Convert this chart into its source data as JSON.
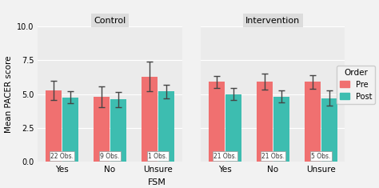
{
  "panels": [
    "Control",
    "Intervention"
  ],
  "fsm_categories": [
    "Yes",
    "No",
    "Unsure"
  ],
  "bar_colors": {
    "Pre": "#F08080",
    "Post": "#40BFB0"
  },
  "bar_color_pre": "#F07070",
  "bar_color_post": "#3DBDB0",
  "ylabel": "Mean PACER score",
  "xlabel": "FSM",
  "ylim": [
    0,
    10
  ],
  "yticks": [
    0.0,
    2.5,
    5.0,
    7.5,
    10.0
  ],
  "legend_title": "Order",
  "legend_labels": [
    "Pre",
    "Post"
  ],
  "panel_bg": "#EBEBEB",
  "fig_bg": "#F2F2F2",
  "data": {
    "Control": {
      "Yes": {
        "Pre": {
          "mean": 5.25,
          "err": 0.7
        },
        "Post": {
          "mean": 4.75,
          "err": 0.45
        }
      },
      "No": {
        "Pre": {
          "mean": 4.8,
          "err": 0.75
        },
        "Post": {
          "mean": 4.6,
          "err": 0.55
        }
      },
      "Unsure": {
        "Pre": {
          "mean": 6.3,
          "err": 1.1
        },
        "Post": {
          "mean": 5.2,
          "err": 0.5
        }
      }
    },
    "Intervention": {
      "Yes": {
        "Pre": {
          "mean": 5.9,
          "err": 0.45
        },
        "Post": {
          "mean": 5.0,
          "err": 0.45
        }
      },
      "No": {
        "Pre": {
          "mean": 5.9,
          "err": 0.6
        },
        "Post": {
          "mean": 4.8,
          "err": 0.45
        }
      },
      "Unsure": {
        "Pre": {
          "mean": 5.9,
          "err": 0.5
        },
        "Post": {
          "mean": 4.7,
          "err": 0.55
        }
      }
    }
  },
  "obs_labels": {
    "Control": {
      "Yes": "22 Obs.",
      "No": "9 Obs.",
      "Unsure": "1 Obs."
    },
    "Intervention": {
      "Yes": "21 Obs.",
      "No": "21 Obs.",
      "Unsure": "5 Obs."
    }
  }
}
